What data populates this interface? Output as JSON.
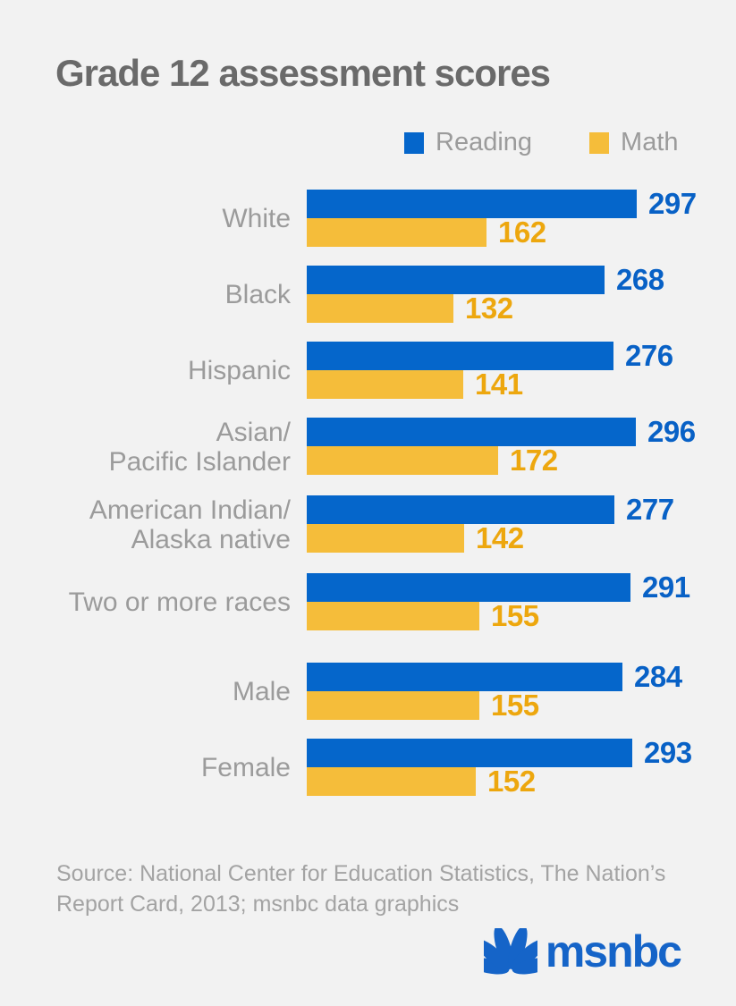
{
  "page": {
    "background": "#f2f2f2"
  },
  "title": "Grade 12 assessment scores",
  "legend": [
    {
      "label": "Reading",
      "color": "#0566cb"
    },
    {
      "label": "Math",
      "color": "#f5bd3a"
    }
  ],
  "chart_data": {
    "type": "bar",
    "orientation": "horizontal",
    "title": "Grade 12 assessment scores",
    "series_names": [
      "Reading",
      "Math"
    ],
    "colors": {
      "reading": "#0566cb",
      "math": "#f5bd3a",
      "reading_label": "#0861c6",
      "math_label": "#eda70e"
    },
    "value_range": [
      0,
      300
    ],
    "groups": [
      {
        "label_lines": [
          "White"
        ],
        "reading": 297,
        "math": 162,
        "section_break": false
      },
      {
        "label_lines": [
          "Black"
        ],
        "reading": 268,
        "math": 132,
        "section_break": false
      },
      {
        "label_lines": [
          "Hispanic"
        ],
        "reading": 276,
        "math": 141,
        "section_break": false
      },
      {
        "label_lines": [
          "Asian/",
          "Pacific Islander"
        ],
        "reading": 296,
        "math": 172,
        "section_break": false
      },
      {
        "label_lines": [
          "American Indian/",
          "Alaska native"
        ],
        "reading": 277,
        "math": 142,
        "section_break": false
      },
      {
        "label_lines": [
          "Two or more races"
        ],
        "reading": 291,
        "math": 155,
        "section_break": false
      },
      {
        "label_lines": [
          "Male"
        ],
        "reading": 284,
        "math": 155,
        "section_break": true
      },
      {
        "label_lines": [
          "Female"
        ],
        "reading": 293,
        "math": 152,
        "section_break": false
      }
    ]
  },
  "source": {
    "line1": "Source: National Center for Education Statistics, The Nation’s",
    "line2": "Report Card, 2013; msnbc data graphics"
  },
  "logo": {
    "text": "msnbc",
    "color": "#1564c8",
    "icon": "nbc-peacock-icon"
  }
}
